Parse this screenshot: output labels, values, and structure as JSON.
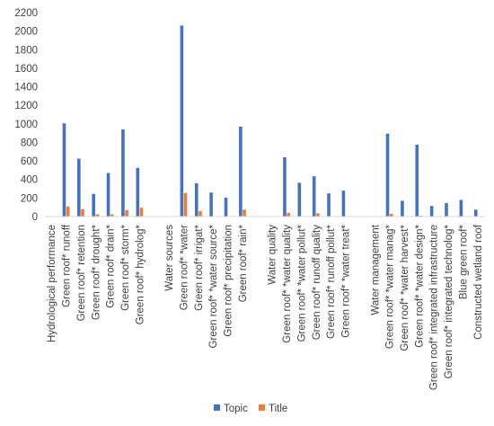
{
  "chart_data": {
    "type": "bar",
    "title": "",
    "xlabel": "",
    "ylabel": "",
    "ylim": [
      0,
      2200
    ],
    "y_ticks": [
      0,
      200,
      400,
      600,
      800,
      1000,
      1200,
      1400,
      1600,
      1800,
      2000,
      2200
    ],
    "grid": false,
    "legend_position": "bottom",
    "categories": [
      "Hydrological performance",
      "Green roof* runoff",
      "Green roof* retention",
      "Green roof* drought*",
      "Green roof* drain*",
      "Green roof* storm*",
      "Green roof* hydrolog*",
      "",
      "Water sources",
      "Green roof* *water",
      "Green roof* irrigat*",
      "Green roof* *water source*",
      "Green roof* precipitation",
      "Green roof* rain*",
      "",
      "Water quality",
      "Green roof* *water quality",
      "Green roof* *water pollut*",
      "Green roof* runoff quality",
      "Green roof* runoff pollut*",
      "Green roof* *water treat*",
      "",
      "Water management",
      "Green roof* *water manag*",
      "Green roof* *water harvest*",
      "Green roof* *water design*",
      "Green roof* integrated infrastructure",
      "Green roof* integrated technolog*",
      "Blue green roof*",
      "Constructed wetland roof"
    ],
    "series": [
      {
        "name": "Topic",
        "color": "#4472C4",
        "values": [
          0,
          1005,
          625,
          245,
          470,
          940,
          525,
          0,
          0,
          2060,
          360,
          260,
          205,
          970,
          0,
          0,
          640,
          365,
          435,
          250,
          280,
          0,
          0,
          895,
          170,
          775,
          115,
          145,
          180,
          75
        ]
      },
      {
        "name": "Title",
        "color": "#ED7D31",
        "values": [
          0,
          110,
          80,
          25,
          25,
          70,
          95,
          0,
          0,
          255,
          60,
          0,
          0,
          75,
          0,
          0,
          40,
          0,
          35,
          0,
          0,
          0,
          0,
          30,
          0,
          10,
          0,
          0,
          0,
          0
        ]
      }
    ]
  }
}
